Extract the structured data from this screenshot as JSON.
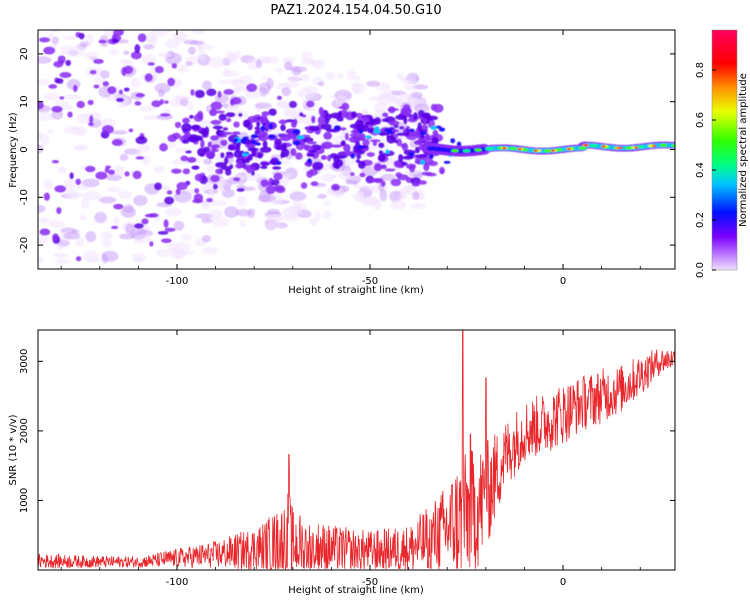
{
  "figure": {
    "title": "PAZ1.2024.154.04.50.G10"
  },
  "chart_data": [
    {
      "type": "heatmap",
      "xlabel": "Height of straight line (km)",
      "ylabel": "Frequency (Hz)",
      "xlim": [
        -136,
        29
      ],
      "ylim": [
        -25,
        25
      ],
      "xticks": [
        -100,
        -50,
        0
      ],
      "yticks": [
        -20,
        -10,
        0,
        10,
        20
      ],
      "colorbar": {
        "label": "Normalized spectral amplitude",
        "range": [
          0,
          0.96
        ],
        "ticks": [
          0.0,
          0.2,
          0.4,
          0.6,
          0.8
        ],
        "tick_labels": [
          "0.0",
          "0.2",
          "0.4",
          "0.6",
          "0.8"
        ],
        "colormap": "gist_rainbow_r (purple-blue-cyan-green-yellow-red-pink)"
      },
      "description_values": {
        "dominant_frequency_hz": 0,
        "frequency_spread_low_hz": 22,
        "frequency_spread_high_hz": 1,
        "transition_height_km": -30
      },
      "colors": {
        "low": "#d4aaf7",
        "mid": "#5a00e6",
        "peak": "#ff0000"
      }
    },
    {
      "type": "line",
      "xlabel": "Height of straight line (km)",
      "ylabel": "SNR (10 * v/v)",
      "xlim": [
        -136,
        29
      ],
      "ylim": [
        0,
        3450
      ],
      "xticks": [
        -100,
        -50,
        0
      ],
      "yticks": [
        1000,
        2000,
        3000
      ],
      "series": [
        {
          "color": "#e8262b",
          "envelope": {
            "x": [
              -136,
              -125,
              -110,
              -100,
              -90,
              -80,
              -73,
              -71,
              -70,
              -65,
              -60,
              -50,
              -40,
              -35,
              -30,
              -27,
              -25,
              -22,
              -20,
              -15,
              -10,
              -5,
              0,
              5,
              10,
              15,
              20,
              25,
              29
            ],
            "mean": [
              130,
              120,
              115,
              170,
              220,
              300,
              400,
              480,
              380,
              330,
              300,
              270,
              300,
              420,
              600,
              720,
              800,
              900,
              1050,
              1650,
              2000,
              2100,
              2250,
              2400,
              2500,
              2600,
              2800,
              3000,
              3050
            ],
            "amp": [
              110,
              90,
              80,
              140,
              200,
              320,
              500,
              700,
              500,
              400,
              350,
              300,
              350,
              500,
              650,
              900,
              900,
              900,
              800,
              500,
              450,
              450,
              450,
              400,
              400,
              350,
              300,
              200,
              150
            ]
          },
          "peaks": [
            {
              "x": -71,
              "y": 1660
            },
            {
              "x": -26,
              "y": 3450
            },
            {
              "x": -20,
              "y": 2760
            },
            {
              "x": -24,
              "y": 1950
            }
          ]
        }
      ]
    }
  ]
}
